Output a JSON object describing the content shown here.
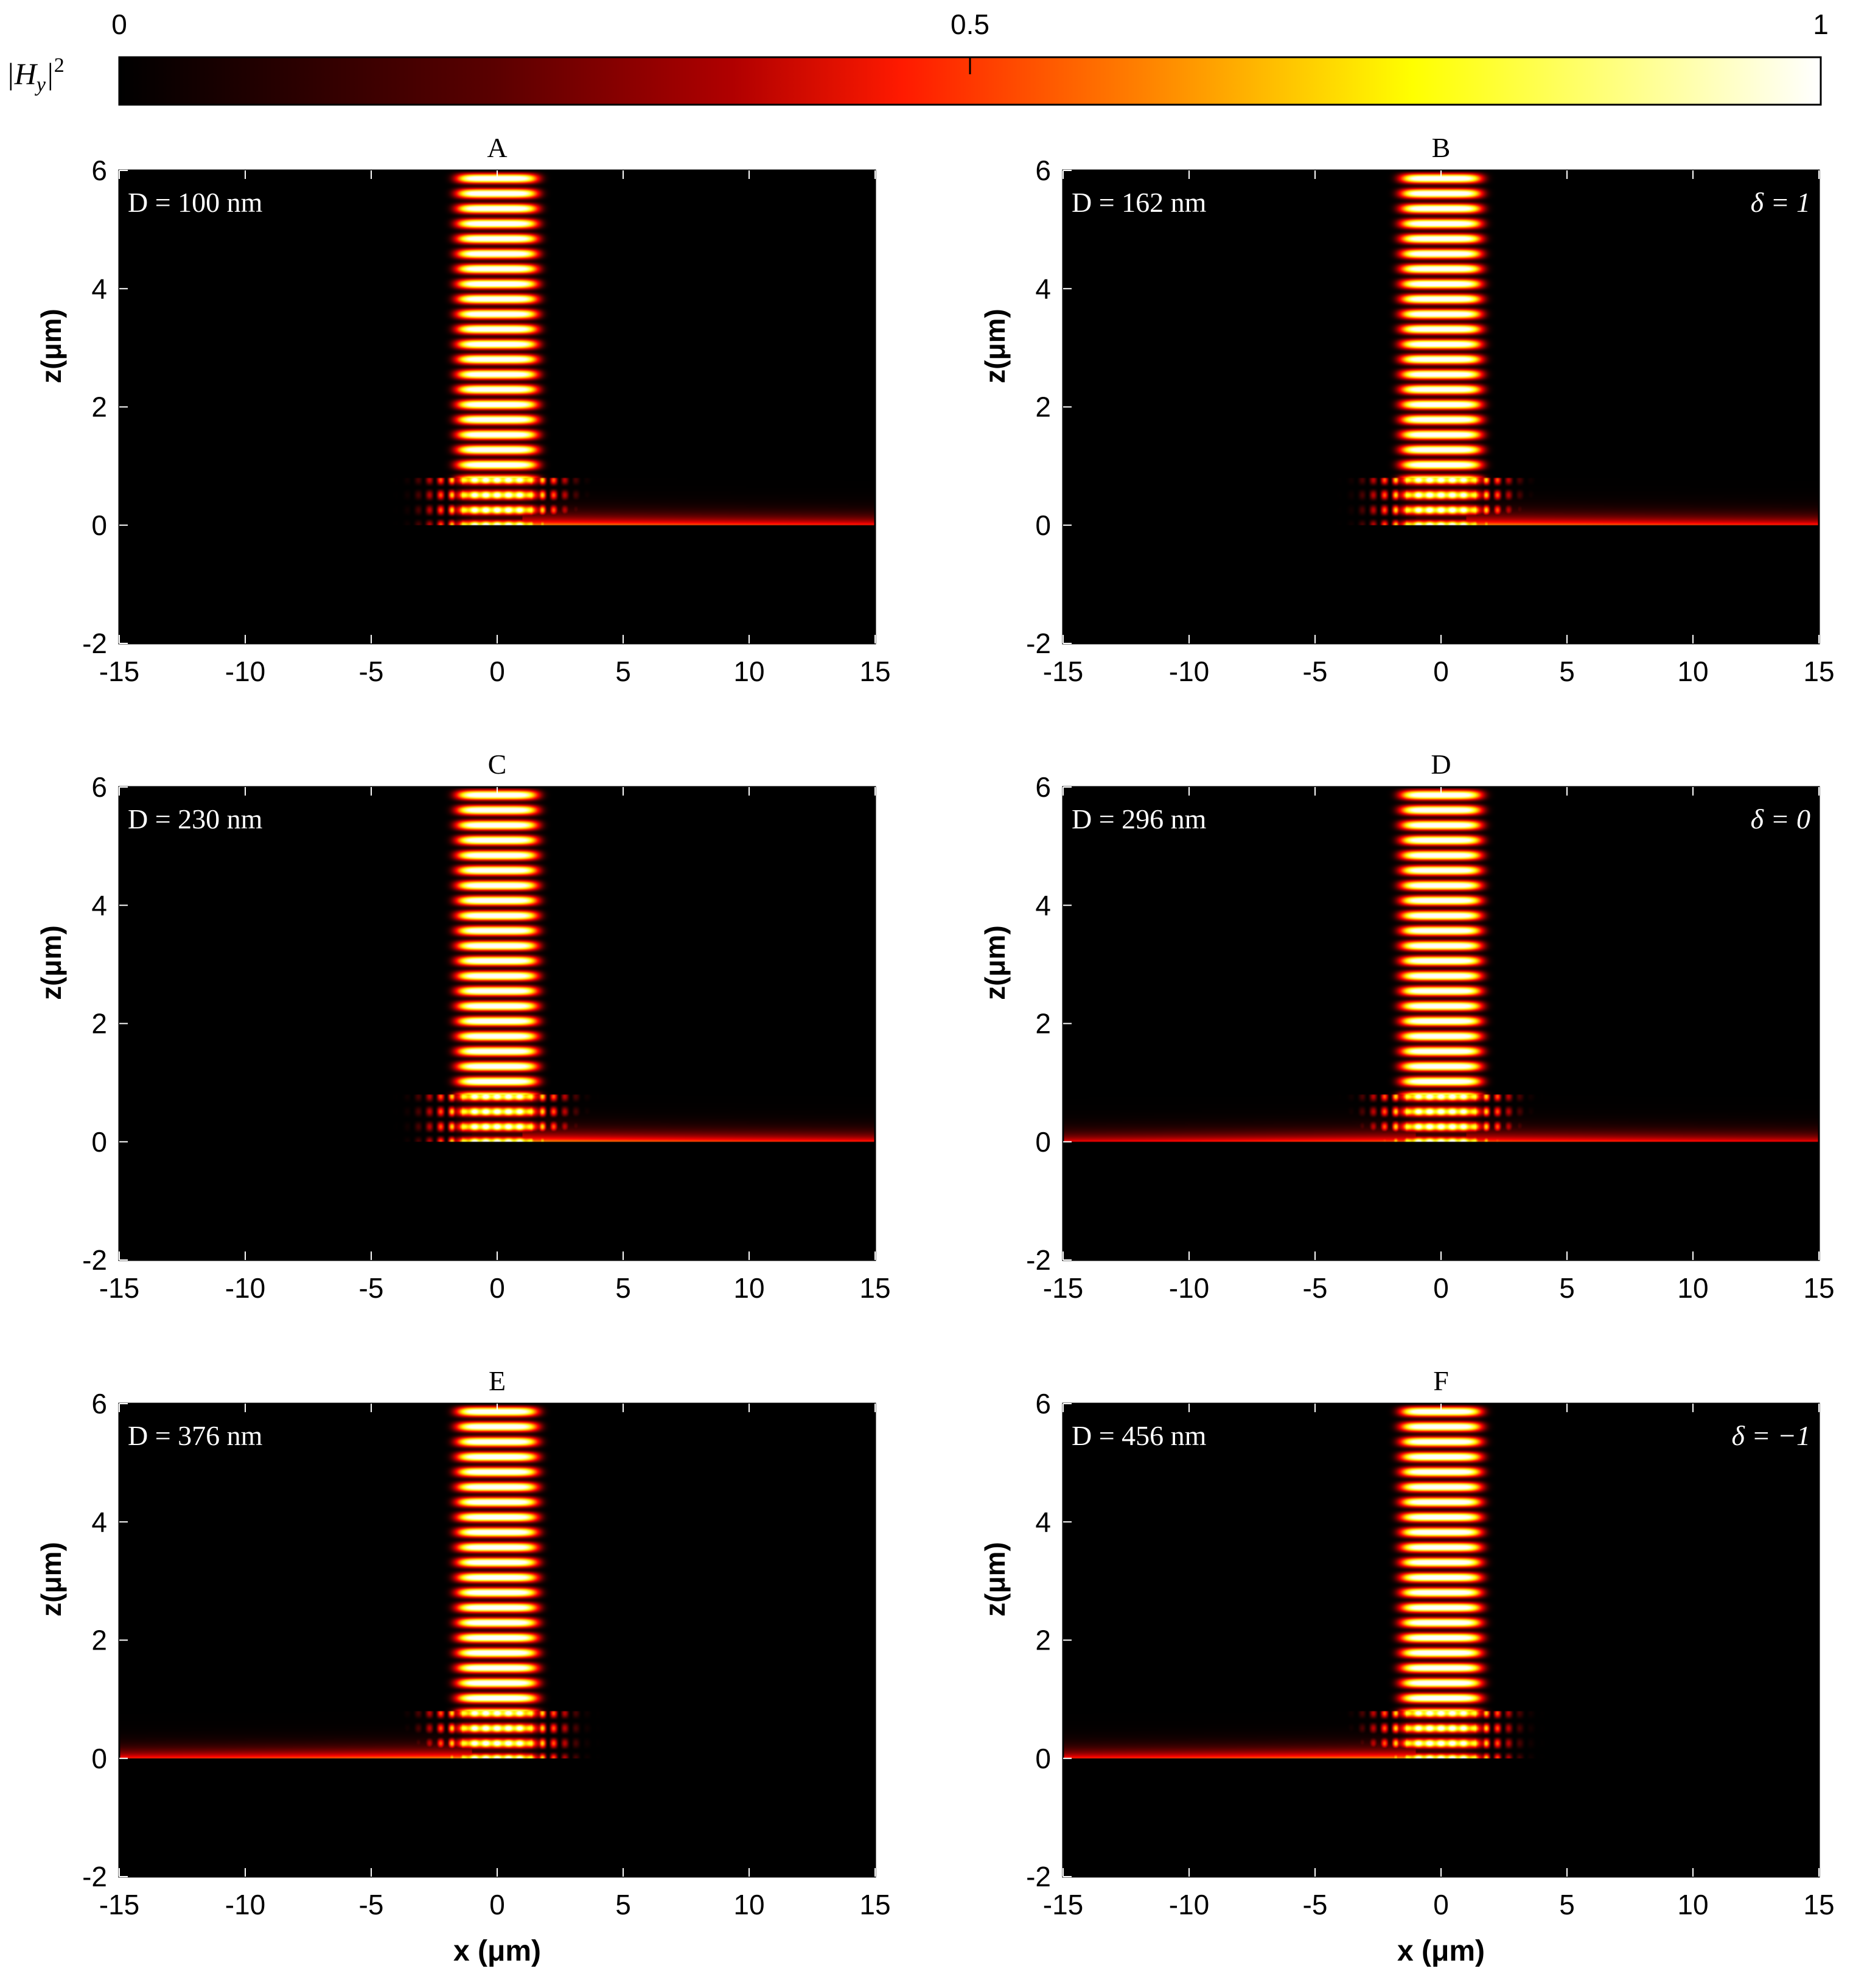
{
  "colorbar": {
    "label": "|H_y|^2",
    "ticks": [
      "0",
      "0.5",
      "1"
    ],
    "min": 0,
    "max": 1,
    "colormap": "hot",
    "stops": [
      "#000000",
      "#8b0000",
      "#ff0000",
      "#ff8000",
      "#ffff00",
      "#ffffff"
    ]
  },
  "chart_data": [
    {
      "type": "heatmap",
      "title": "A",
      "annotation": "D = 100 nm",
      "delta_label": "",
      "D_nm": 100,
      "surface_wave_direction": "right",
      "xlim": [
        -15,
        15
      ],
      "ylim": [
        -2,
        6
      ],
      "x_ticks": [
        "-15",
        "-10",
        "-5",
        "0",
        "5",
        "10",
        "15"
      ],
      "y_ticks": [
        "-2",
        "0",
        "2",
        "4",
        "6"
      ],
      "xlabel": "",
      "ylabel": "z(μm)"
    },
    {
      "type": "heatmap",
      "title": "B",
      "annotation": "D = 162 nm",
      "delta_label": "δ = 1",
      "D_nm": 162,
      "surface_wave_direction": "right",
      "xlim": [
        -15,
        15
      ],
      "ylim": [
        -2,
        6
      ],
      "x_ticks": [
        "-15",
        "-10",
        "-5",
        "0",
        "5",
        "10",
        "15"
      ],
      "y_ticks": [
        "-2",
        "0",
        "2",
        "4",
        "6"
      ],
      "xlabel": "",
      "ylabel": "z(μm)"
    },
    {
      "type": "heatmap",
      "title": "C",
      "annotation": "D = 230 nm",
      "delta_label": "",
      "D_nm": 230,
      "surface_wave_direction": "right",
      "xlim": [
        -15,
        15
      ],
      "ylim": [
        -2,
        6
      ],
      "x_ticks": [
        "-15",
        "-10",
        "-5",
        "0",
        "5",
        "10",
        "15"
      ],
      "y_ticks": [
        "-2",
        "0",
        "2",
        "4",
        "6"
      ],
      "xlabel": "",
      "ylabel": "z(μm)"
    },
    {
      "type": "heatmap",
      "title": "D",
      "annotation": "D = 296 nm",
      "delta_label": "δ = 0",
      "D_nm": 296,
      "surface_wave_direction": "both",
      "xlim": [
        -15,
        15
      ],
      "ylim": [
        -2,
        6
      ],
      "x_ticks": [
        "-15",
        "-10",
        "-5",
        "0",
        "5",
        "10",
        "15"
      ],
      "y_ticks": [
        "-2",
        "0",
        "2",
        "4",
        "6"
      ],
      "xlabel": "",
      "ylabel": "z(μm)"
    },
    {
      "type": "heatmap",
      "title": "E",
      "annotation": "D = 376 nm",
      "delta_label": "",
      "D_nm": 376,
      "surface_wave_direction": "left",
      "xlim": [
        -15,
        15
      ],
      "ylim": [
        -2,
        6
      ],
      "x_ticks": [
        "-15",
        "-10",
        "-5",
        "0",
        "5",
        "10",
        "15"
      ],
      "y_ticks": [
        "-2",
        "0",
        "2",
        "4",
        "6"
      ],
      "xlabel": "x (μm)",
      "ylabel": "z(μm)"
    },
    {
      "type": "heatmap",
      "title": "F",
      "annotation": "D = 456 nm",
      "delta_label": "δ = −1",
      "D_nm": 456,
      "surface_wave_direction": "left",
      "xlim": [
        -15,
        15
      ],
      "ylim": [
        -2,
        6
      ],
      "x_ticks": [
        "-15",
        "-10",
        "-5",
        "0",
        "5",
        "10",
        "15"
      ],
      "y_ticks": [
        "-2",
        "0",
        "2",
        "4",
        "6"
      ],
      "xlabel": "x (μm)",
      "ylabel": "z(μm)"
    }
  ]
}
